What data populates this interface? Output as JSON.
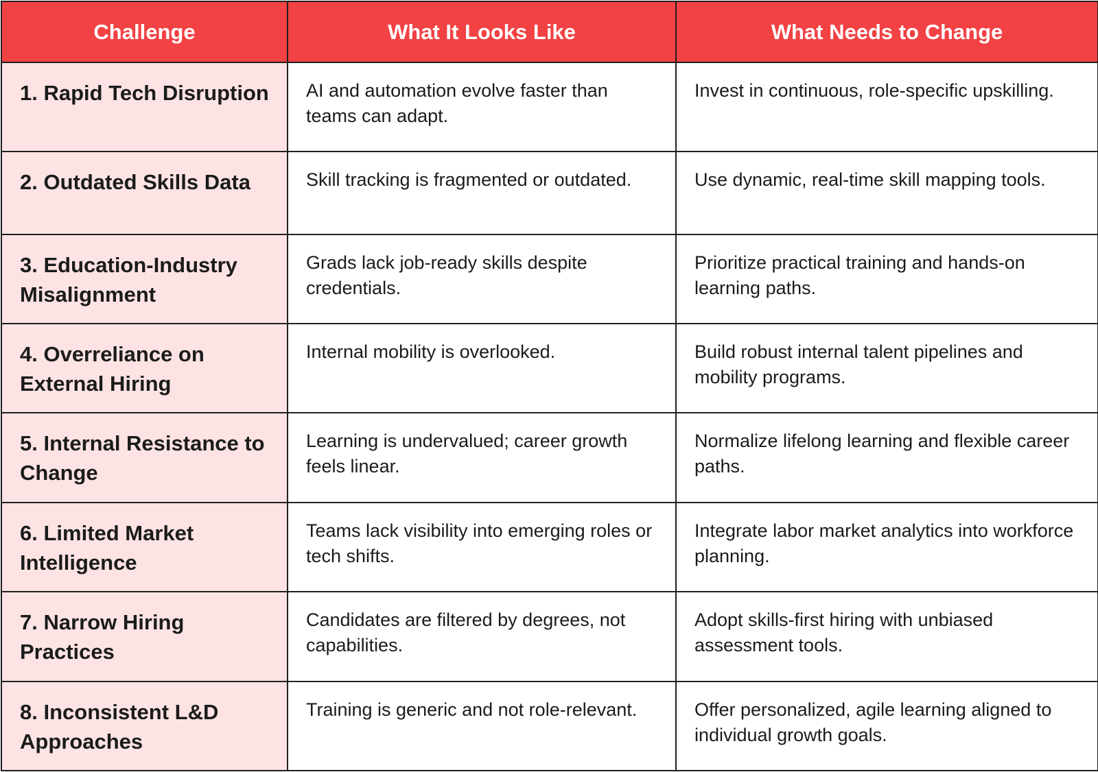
{
  "table": {
    "headers": [
      "Challenge",
      "What It Looks Like",
      "What Needs to Change"
    ],
    "rows": [
      {
        "challenge": "1. Rapid Tech Disruption",
        "looks_like": "AI and automation evolve faster than teams can adapt.",
        "needs_change": "Invest in continuous, role-specific upskilling."
      },
      {
        "challenge": "2. Outdated Skills Data",
        "looks_like": "Skill tracking is fragmented or outdated.",
        "needs_change": "Use dynamic, real-time skill mapping tools."
      },
      {
        "challenge": "3. Education-Industry Misalignment",
        "looks_like": "Grads lack job-ready skills despite credentials.",
        "needs_change": "Prioritize practical training and hands-on learning paths."
      },
      {
        "challenge": "4. Overreliance on External Hiring",
        "looks_like": "Internal mobility is overlooked.",
        "needs_change": "Build robust internal talent pipelines and mobility programs."
      },
      {
        "challenge": "5. Internal Resistance to Change",
        "looks_like": "Learning is undervalued; career growth feels linear.",
        "needs_change": "Normalize lifelong learning and flexible career paths."
      },
      {
        "challenge": "6. Limited Market Intelligence",
        "looks_like": "Teams lack visibility into emerging roles or tech shifts.",
        "needs_change": "Integrate labor market analytics into workforce planning."
      },
      {
        "challenge": "7. Narrow Hiring Practices",
        "looks_like": "Candidates are filtered by degrees, not capabilities.",
        "needs_change": "Adopt skills-first hiring with unbiased assessment tools."
      },
      {
        "challenge": "8. Inconsistent L&D Approaches",
        "looks_like": "Training is generic and not role-relevant.",
        "needs_change": "Offer personalized, agile learning aligned to individual growth goals."
      }
    ]
  },
  "colors": {
    "header_bg": "#f24244",
    "header_text": "#ffffff",
    "challenge_bg": "#fde3e3",
    "border": "#1f1f1f"
  }
}
